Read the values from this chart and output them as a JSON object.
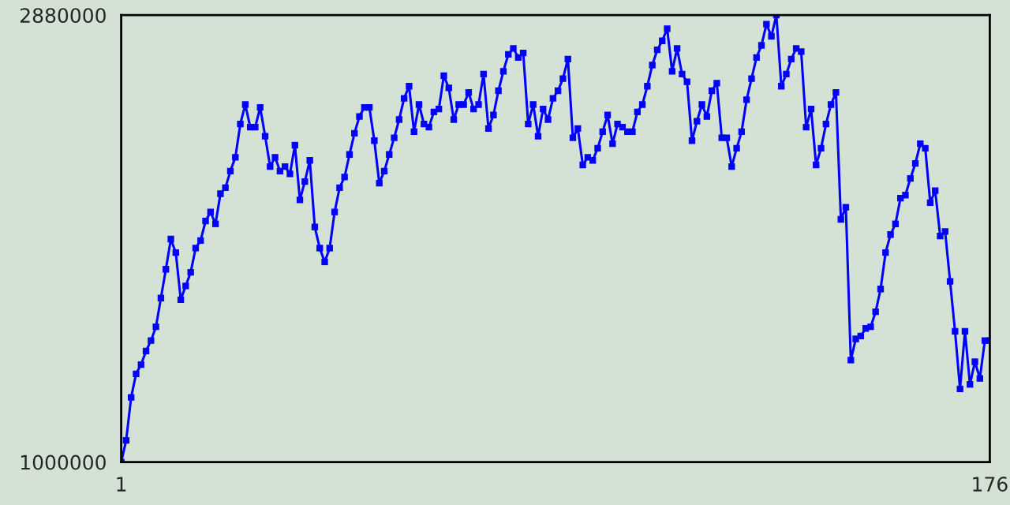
{
  "chart_data": {
    "type": "line",
    "x": [
      1,
      2,
      3,
      4,
      5,
      6,
      7,
      8,
      9,
      10,
      11,
      12,
      13,
      14,
      15,
      16,
      17,
      18,
      19,
      20,
      21,
      22,
      23,
      24,
      25,
      26,
      27,
      28,
      29,
      30,
      31,
      32,
      33,
      34,
      35,
      36,
      37,
      38,
      39,
      40,
      41,
      42,
      43,
      44,
      45,
      46,
      47,
      48,
      49,
      50,
      51,
      52,
      53,
      54,
      55,
      56,
      57,
      58,
      59,
      60,
      61,
      62,
      63,
      64,
      65,
      66,
      67,
      68,
      69,
      70,
      71,
      72,
      73,
      74,
      75,
      76,
      77,
      78,
      79,
      80,
      81,
      82,
      83,
      84,
      85,
      86,
      87,
      88,
      89,
      90,
      91,
      92,
      93,
      94,
      95,
      96,
      97,
      98,
      99,
      100,
      101,
      102,
      103,
      104,
      105,
      106,
      107,
      108,
      109,
      110,
      111,
      112,
      113,
      114,
      115,
      116,
      117,
      118,
      119,
      120,
      121,
      122,
      123,
      124,
      125,
      126,
      127,
      128,
      129,
      130,
      131,
      132,
      133,
      134,
      135,
      136,
      137,
      138,
      139,
      140,
      141,
      142,
      143,
      144,
      145,
      146,
      147,
      148,
      149,
      150,
      151,
      152,
      153,
      154,
      155,
      156,
      157,
      158,
      159,
      160,
      161,
      162,
      163,
      164,
      165,
      166,
      167,
      168,
      169,
      170,
      171,
      172,
      173,
      174,
      175,
      176
    ],
    "series": [
      {
        "color": "#0000ff",
        "values": [
          1000000,
          1091000,
          1272000,
          1371000,
          1410000,
          1467000,
          1511000,
          1569000,
          1690000,
          1811000,
          1938000,
          1881000,
          1683000,
          1741000,
          1798000,
          1900000,
          1932000,
          2014000,
          2052000,
          2002000,
          2129000,
          2154000,
          2224000,
          2282000,
          2422000,
          2504000,
          2409000,
          2409000,
          2492000,
          2371000,
          2243000,
          2282000,
          2224000,
          2243000,
          2212000,
          2333000,
          2103000,
          2180000,
          2269000,
          1989000,
          1900000,
          1842000,
          1900000,
          2052000,
          2154000,
          2199000,
          2294000,
          2383000,
          2454000,
          2492000,
          2492000,
          2352000,
          2173000,
          2224000,
          2294000,
          2364000,
          2441000,
          2530000,
          2581000,
          2390000,
          2504000,
          2422000,
          2409000,
          2473000,
          2485000,
          2625000,
          2574000,
          2441000,
          2504000,
          2504000,
          2555000,
          2485000,
          2504000,
          2632000,
          2403000,
          2460000,
          2562000,
          2644000,
          2715000,
          2740000,
          2702000,
          2721000,
          2422000,
          2504000,
          2371000,
          2485000,
          2441000,
          2530000,
          2562000,
          2613000,
          2695000,
          2364000,
          2403000,
          2250000,
          2282000,
          2269000,
          2320000,
          2390000,
          2460000,
          2339000,
          2422000,
          2409000,
          2390000,
          2390000,
          2473000,
          2504000,
          2581000,
          2670000,
          2734000,
          2772000,
          2823000,
          2644000,
          2740000,
          2632000,
          2600000,
          2352000,
          2434000,
          2504000,
          2454000,
          2562000,
          2594000,
          2364000,
          2364000,
          2243000,
          2320000,
          2390000,
          2524000,
          2613000,
          2702000,
          2753000,
          2842000,
          2791000,
          2880000,
          2581000,
          2632000,
          2695000,
          2740000,
          2727000,
          2409000,
          2485000,
          2250000,
          2320000,
          2422000,
          2504000,
          2555000,
          2021000,
          2072000,
          1429000,
          1518000,
          1530000,
          1562000,
          1569000,
          1632000,
          1728000,
          1881000,
          1957000,
          2002000,
          2110000,
          2123000,
          2193000,
          2256000,
          2339000,
          2320000,
          2091000,
          2142000,
          1951000,
          1970000,
          1760000,
          1550000,
          1308000,
          1550000,
          1327000,
          1422000,
          1352000,
          1511000,
          1511000
        ]
      }
    ],
    "xlim": [
      1,
      176
    ],
    "xticks": [
      1,
      176
    ],
    "ylim": [
      1000000,
      2880000
    ],
    "yticks": [
      1000000,
      2880000
    ],
    "marker": "square",
    "line_style": "solid"
  }
}
